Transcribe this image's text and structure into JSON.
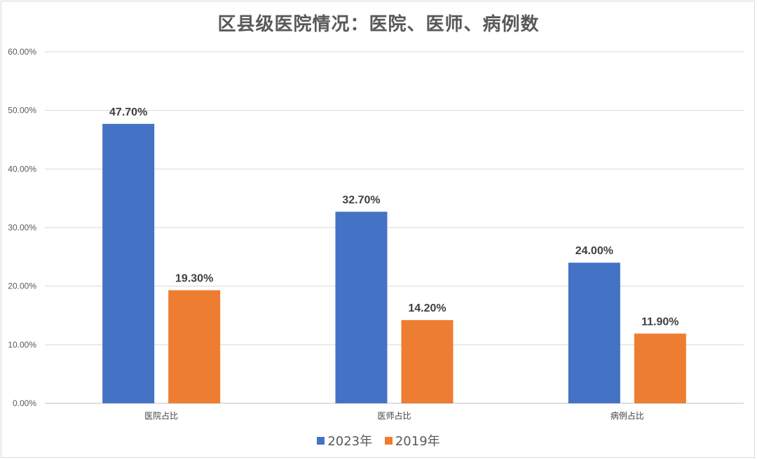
{
  "chart_data": {
    "type": "bar",
    "title": "区县级医院情况：医院、医师、病例数",
    "categories": [
      "医院占比",
      "医师占比",
      "病例占比"
    ],
    "series": [
      {
        "name": "2023年",
        "values": [
          47.7,
          32.7,
          24.0
        ],
        "color": "#4472C4",
        "labels": [
          "47.70%",
          "32.70%",
          "24.00%"
        ]
      },
      {
        "name": "2019年",
        "values": [
          19.3,
          14.2,
          11.9
        ],
        "color": "#ED7D31",
        "labels": [
          "19.30%",
          "14.20%",
          "11.90%"
        ]
      }
    ],
    "yticks": [
      "0.00%",
      "10.00%",
      "20.00%",
      "30.00%",
      "40.00%",
      "50.00%",
      "60.00%"
    ],
    "ylim": [
      0,
      60
    ],
    "grid": true,
    "legend_position": "bottom"
  }
}
